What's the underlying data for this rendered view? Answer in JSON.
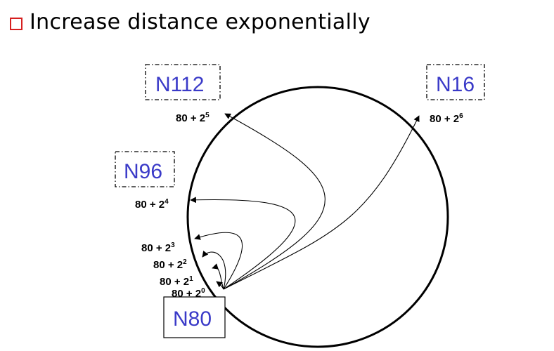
{
  "bullet": {
    "text": "Increase distance exponentially"
  },
  "nodes": {
    "n112": "N112",
    "n16": "N16",
    "n96": "N96",
    "n80": "N80"
  },
  "fingers": [
    {
      "base": "80 + 2",
      "exp": "0"
    },
    {
      "base": "80 + 2",
      "exp": "1"
    },
    {
      "base": "80 + 2",
      "exp": "2"
    },
    {
      "base": "80 + 2",
      "exp": "3"
    },
    {
      "base": "80 + 2",
      "exp": "4"
    },
    {
      "base": "80 + 2",
      "exp": "5"
    },
    {
      "base": "80 + 2",
      "exp": "6"
    }
  ],
  "colors": {
    "bullet_box": "#d62020",
    "node_label": "#3a3ac8",
    "line": "#000000"
  },
  "icons": {
    "bullet": "square-bullet-icon"
  }
}
